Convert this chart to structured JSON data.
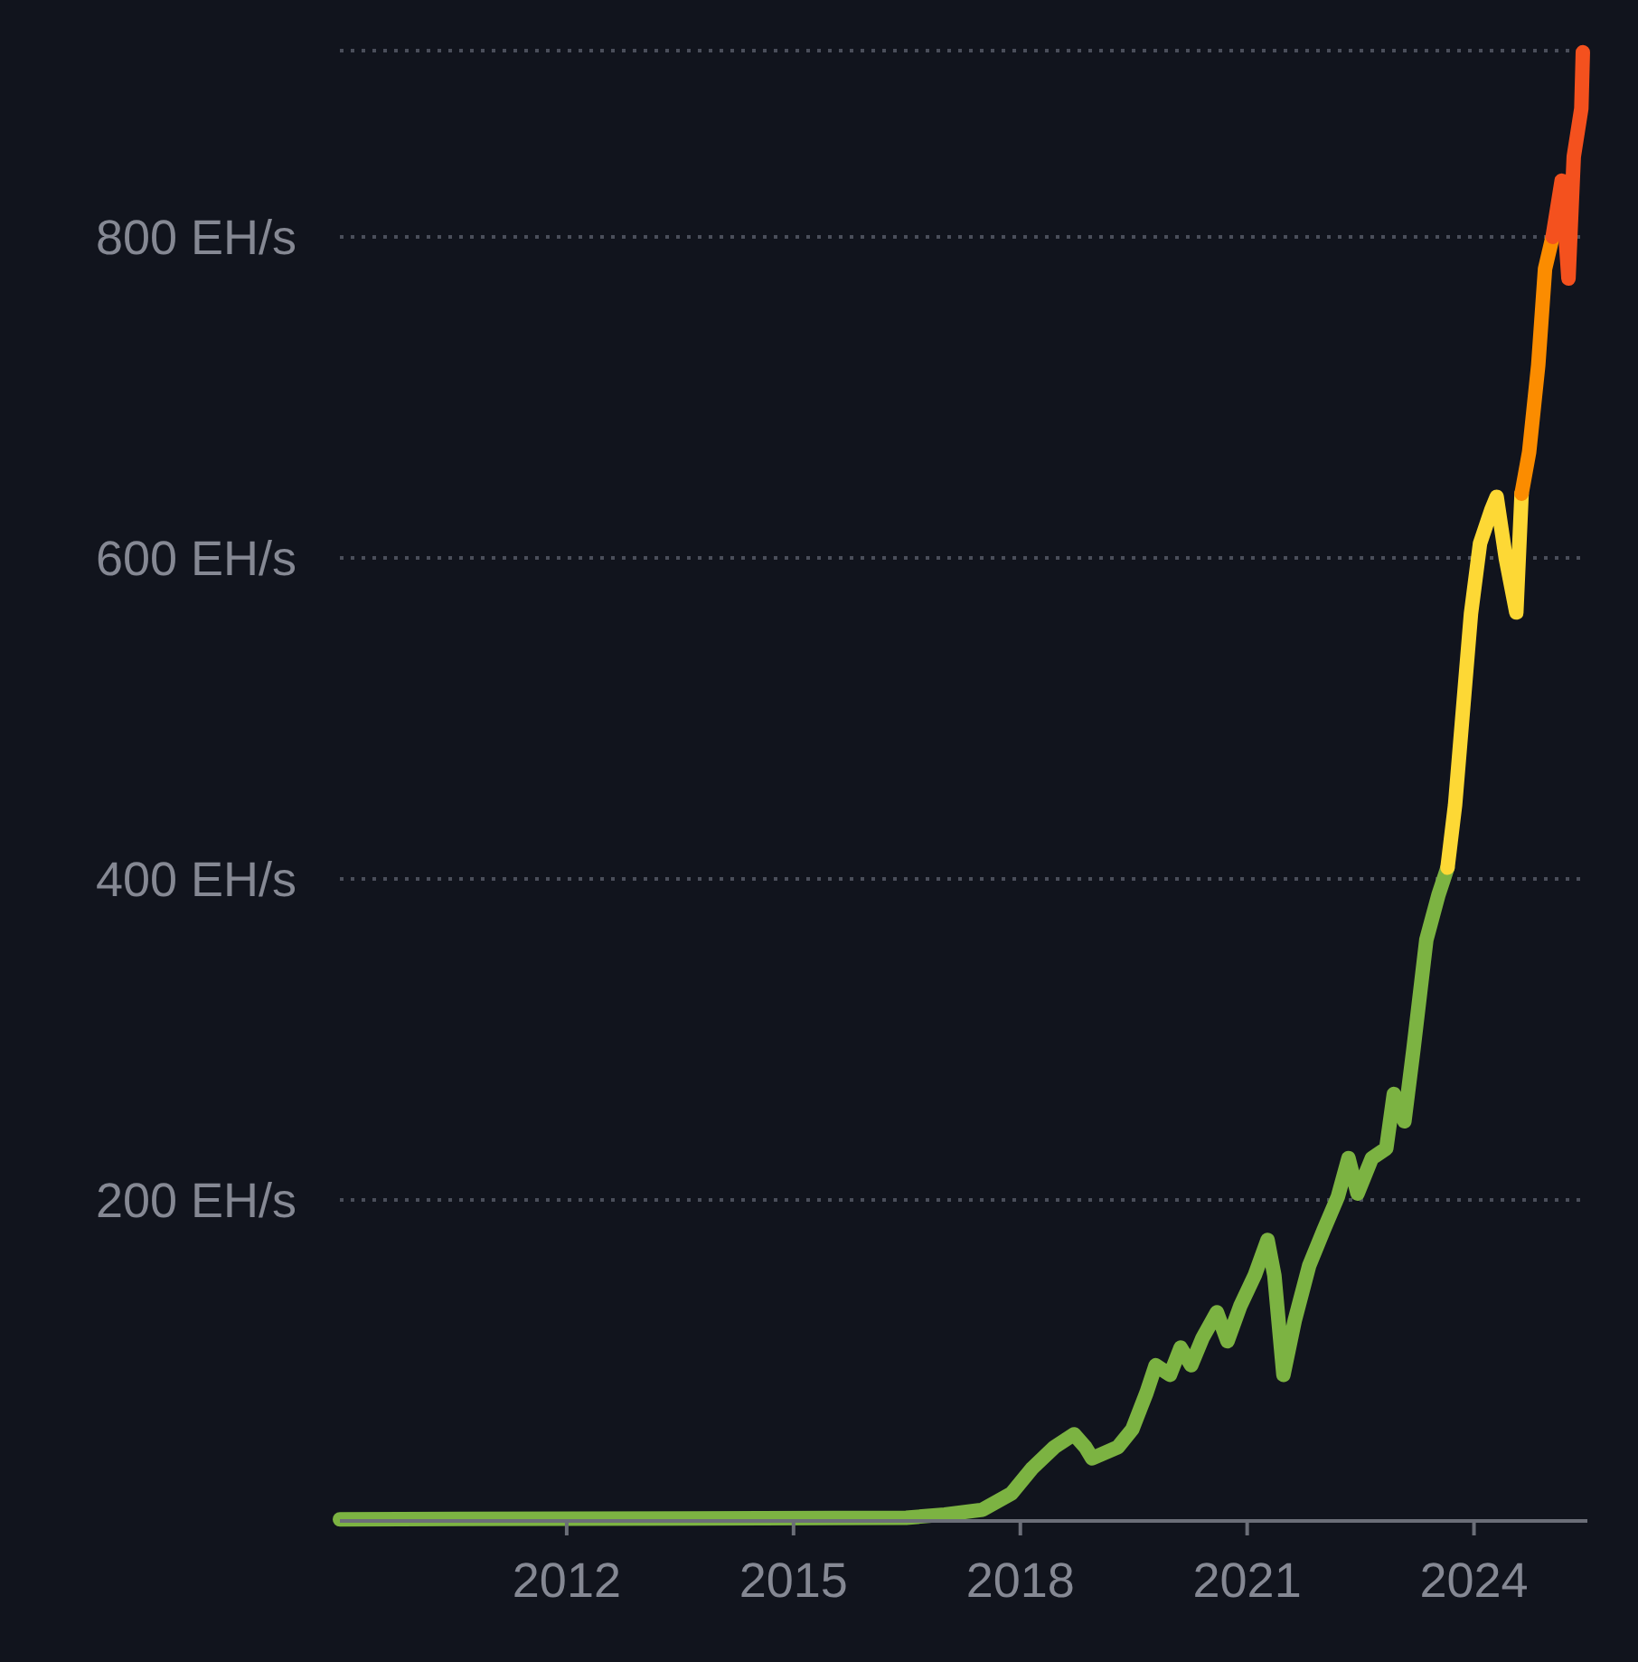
{
  "chart_data": {
    "type": "line",
    "xlim": [
      2009,
      2025.5
    ],
    "ylim": [
      0,
      916
    ],
    "xticks": [
      2012,
      2015,
      2018,
      2021,
      2024
    ],
    "yticks": [
      {
        "value": 200,
        "label": "200 EH/s"
      },
      {
        "value": 400,
        "label": "400 EH/s"
      },
      {
        "value": 600,
        "label": "600 EH/s"
      },
      {
        "value": 800,
        "label": "800 EH/s"
      },
      {
        "value": 916,
        "label": null
      }
    ],
    "grid": "y",
    "marker": "none",
    "line_style": "solid",
    "series": [
      {
        "color": "#7cb342",
        "x": [
          2009.0,
          2016.49,
          2017.0,
          2017.5,
          2017.88,
          2018.16,
          2018.45,
          2018.71,
          2018.86,
          2018.95,
          2019.29,
          2019.48,
          2019.67,
          2019.79,
          2019.98,
          2020.12,
          2020.26,
          2020.41,
          2020.6,
          2020.74,
          2020.91,
          2021.1,
          2021.27,
          2021.36,
          2021.48,
          2021.63,
          2021.82,
          2022.01,
          2022.2,
          2022.34,
          2022.46,
          2022.65,
          2022.84,
          2022.94,
          2023.08,
          2023.2,
          2023.37,
          2023.53,
          2023.65
        ],
        "values": [
          1,
          2,
          4,
          7,
          17,
          33,
          46,
          54,
          46,
          39,
          46,
          57,
          80,
          97,
          91,
          108,
          97,
          114,
          130,
          112,
          134,
          153,
          175,
          153,
          91,
          125,
          159,
          181,
          202,
          226,
          204,
          226,
          232,
          266,
          249,
          294,
          362,
          390,
          407
        ]
      },
      {
        "color": "#fdd835",
        "x": [
          2023.65,
          2023.75,
          2023.84,
          2023.96,
          2024.08,
          2024.23,
          2024.3,
          2024.42,
          2024.56,
          2024.63
        ],
        "values": [
          407,
          446,
          497,
          565,
          609,
          630,
          638,
          600,
          566,
          640
        ]
      },
      {
        "color": "#fb8c00",
        "x": [
          2024.63,
          2024.73,
          2024.85,
          2024.94,
          2025.04
        ],
        "values": [
          640,
          666,
          720,
          780,
          800
        ]
      },
      {
        "color": "#f4511e",
        "x": [
          2025.04,
          2025.16,
          2025.25,
          2025.32,
          2025.42,
          2025.44
        ],
        "values": [
          800,
          835,
          774,
          850,
          880,
          915
        ]
      }
    ]
  }
}
